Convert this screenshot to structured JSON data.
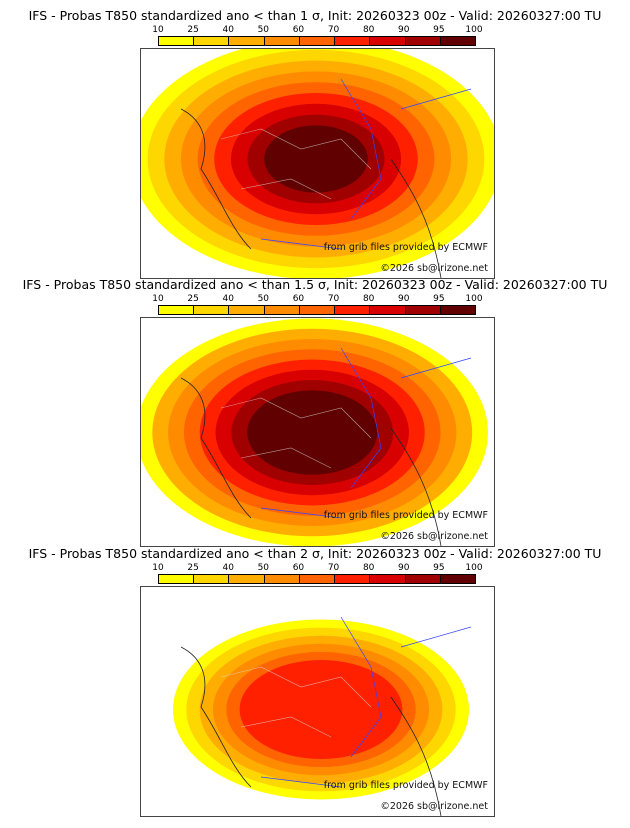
{
  "panels": [
    {
      "title": "IFS - Probas T850  standardized ano < than 1 σ, Init: 20260323 00z - Valid: 20260327:00 TU",
      "intensity": 3
    },
    {
      "title": "IFS - Probas T850  standardized ano < than 1.5 σ, Init: 20260323 00z - Valid: 20260327:00 TU",
      "intensity": 2
    },
    {
      "title": "IFS - Probas T850  standardized ano < than 2 σ, Init: 20260323 00z - Valid: 20260327:00 TU",
      "intensity": 1
    }
  ],
  "colorbar": {
    "ticks": [
      "10",
      "25",
      "40",
      "50",
      "60",
      "70",
      "80",
      "90",
      "95",
      "100"
    ],
    "colors": [
      "#ffff00",
      "#ffd700",
      "#ffad00",
      "#ff8c00",
      "#ff6400",
      "#ff2000",
      "#d80000",
      "#a00000",
      "#600000"
    ]
  },
  "credits": {
    "source": "from grib files provided by ECMWF",
    "copyright": "©2026 sb@irizone.net"
  }
}
